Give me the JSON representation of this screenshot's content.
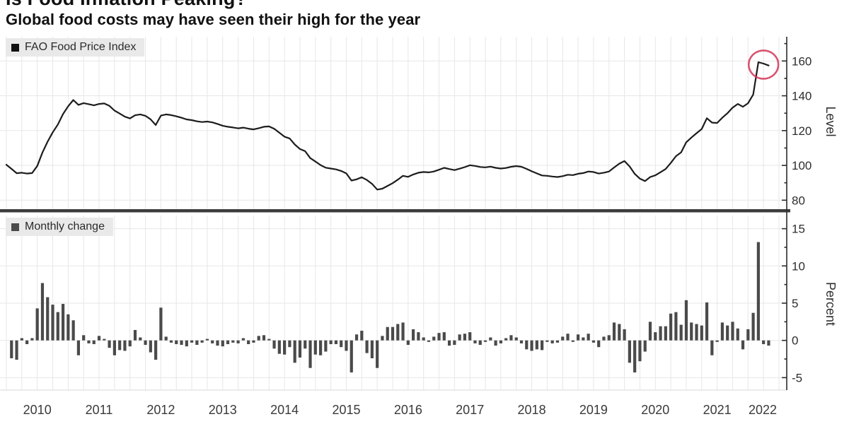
{
  "header": {
    "title": "Is Food Inflation Peaking?",
    "subtitle": "Global food costs may have seen their high for the year"
  },
  "colors": {
    "line": "#1c1c1c",
    "bar": "#4a4a4a",
    "grid": "#e7e7e7",
    "axis": "#2b2b2b",
    "tick_text": "#2e2e2e",
    "year_text": "#3a3a3a",
    "separator": "#3c3c3c",
    "legend_bg": "#e9e9e9",
    "legend_swatch_top": "#111111",
    "legend_swatch_bottom": "#4a4a4a",
    "highlight_circle": "#d23558"
  },
  "x_axis": {
    "years": [
      "2010",
      "2011",
      "2012",
      "2013",
      "2014",
      "2015",
      "2016",
      "2017",
      "2018",
      "2019",
      "2020",
      "2021",
      "2022"
    ]
  },
  "chart_data": [
    {
      "type": "line",
      "name": "fao-food-price-index",
      "legend": "FAO Food Price Index",
      "ylabel": "Level",
      "ylim": [
        75,
        172
      ],
      "yticks": [
        80,
        100,
        120,
        140,
        160
      ],
      "yticks_minor": [
        90,
        110,
        130,
        150,
        170
      ],
      "x_start": "2010-01",
      "x_end": "2022-05",
      "frequency": "monthly",
      "annotation": {
        "shape": "circle",
        "meaning": "highlight-recent-peak",
        "months_covered": 3
      },
      "values": [
        100.4,
        98.0,
        95.5,
        95.8,
        95.3,
        95.6,
        99.7,
        107.4,
        113.6,
        119.0,
        123.5,
        129.5,
        134.0,
        137.6,
        134.8,
        135.8,
        135.2,
        134.5,
        135.3,
        135.6,
        134.2,
        131.5,
        129.8,
        128.0,
        127.0,
        128.8,
        129.3,
        128.5,
        126.5,
        123.2,
        128.6,
        129.3,
        128.9,
        128.2,
        127.4,
        126.4,
        126.0,
        125.3,
        124.9,
        125.2,
        124.7,
        123.8,
        122.8,
        122.2,
        121.8,
        121.3,
        121.7,
        121.1,
        120.7,
        121.4,
        122.2,
        122.4,
        121.0,
        118.8,
        116.5,
        115.5,
        112.0,
        109.4,
        108.2,
        104.2,
        102.2,
        100.2,
        98.7,
        98.2,
        97.7,
        96.8,
        95.4,
        91.3,
        92.0,
        93.2,
        91.6,
        89.4,
        86.1,
        86.6,
        88.2,
        89.8,
        91.8,
        94.0,
        93.4,
        94.8,
        95.8,
        96.2,
        96.0,
        96.5,
        97.5,
        98.6,
        97.9,
        97.3,
        98.1,
        99.0,
        100.1,
        99.7,
        99.1,
        98.9,
        99.3,
        98.6,
        98.2,
        98.5,
        99.2,
        99.6,
        99.2,
        98.0,
        96.6,
        95.4,
        94.2,
        94.0,
        93.6,
        93.3,
        93.8,
        94.6,
        94.4,
        95.2,
        95.6,
        96.5,
        96.2,
        95.3,
        95.8,
        96.5,
        98.8,
        101.0,
        102.5,
        99.4,
        95.1,
        92.4,
        91.0,
        93.3,
        94.3,
        96.1,
        97.9,
        101.4,
        105.3,
        107.5,
        113.3,
        116.0,
        118.5,
        120.9,
        127.1,
        124.6,
        124.4,
        127.4,
        130.0,
        133.2,
        135.3,
        133.7,
        135.7,
        140.7,
        159.3,
        158.5,
        157.4
      ]
    },
    {
      "type": "bar",
      "name": "monthly-change",
      "legend": "Monthly change",
      "ylabel": "Percent",
      "ylim": [
        -7,
        16.5
      ],
      "yticks": [
        -5,
        0,
        5,
        10,
        15
      ],
      "yticks_minor": [
        -2.5,
        2.5,
        7.5,
        12.5
      ],
      "x_start": "2010-02",
      "x_end": "2022-05",
      "frequency": "monthly",
      "values": [
        -2.4,
        -2.6,
        0.3,
        -0.5,
        0.3,
        4.3,
        7.7,
        5.8,
        4.8,
        3.8,
        4.9,
        3.5,
        2.7,
        -2.0,
        0.7,
        -0.4,
        -0.5,
        0.6,
        0.2,
        -1.0,
        -2.0,
        -1.3,
        -1.4,
        -0.8,
        1.4,
        0.4,
        -0.6,
        -1.6,
        -2.6,
        4.4,
        0.5,
        -0.3,
        -0.5,
        -0.6,
        -0.8,
        -0.3,
        -0.6,
        -0.3,
        0.2,
        -0.4,
        -0.7,
        -0.8,
        -0.5,
        -0.3,
        -0.4,
        0.3,
        -0.5,
        -0.3,
        0.6,
        0.7,
        0.2,
        -1.1,
        -1.8,
        -1.9,
        -0.9,
        -3.0,
        -2.3,
        -1.1,
        -3.7,
        -1.9,
        -2.0,
        -1.5,
        -0.5,
        -0.5,
        -0.9,
        -1.4,
        -4.3,
        0.8,
        1.3,
        -1.7,
        -2.4,
        -3.7,
        0.6,
        1.8,
        1.8,
        2.2,
        2.4,
        -0.6,
        1.5,
        1.1,
        0.4,
        -0.2,
        0.5,
        1.0,
        1.1,
        -0.7,
        -0.6,
        0.8,
        0.9,
        1.1,
        -0.4,
        -0.6,
        -0.2,
        0.4,
        -0.7,
        -0.4,
        0.3,
        0.7,
        0.4,
        -0.4,
        -1.2,
        -1.4,
        -1.2,
        -1.3,
        -0.2,
        -0.4,
        -0.3,
        0.5,
        0.9,
        -0.2,
        0.8,
        0.4,
        0.9,
        -0.3,
        -0.9,
        0.5,
        0.7,
        2.4,
        2.2,
        1.5,
        -3.0,
        -4.3,
        -2.8,
        -1.5,
        2.5,
        1.1,
        1.9,
        1.9,
        3.6,
        3.8,
        2.1,
        5.4,
        2.4,
        2.2,
        2.0,
        5.1,
        -2.0,
        -0.2,
        2.4,
        2.0,
        2.5,
        1.6,
        -1.2,
        1.5,
        3.7,
        13.2,
        -0.5,
        -0.7
      ]
    }
  ]
}
